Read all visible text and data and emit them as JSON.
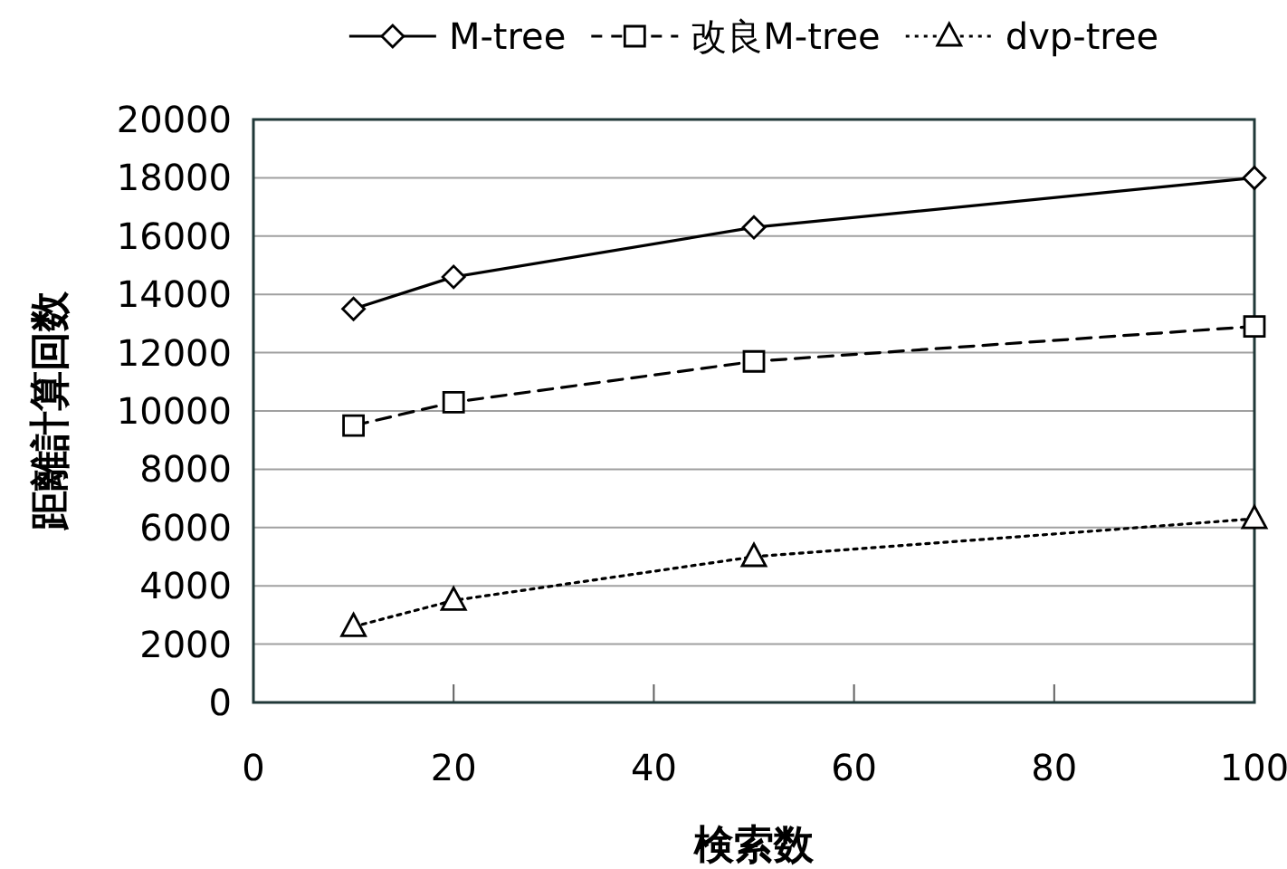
{
  "chart_data": {
    "type": "line",
    "xlabel": "検索数",
    "ylabel": "距離計算回数",
    "x": [
      10,
      20,
      50,
      100
    ],
    "series": [
      {
        "name": "M-tree",
        "color": "#000000",
        "values": [
          13500,
          14600,
          16300,
          18000
        ],
        "marker": "diamond",
        "line_style": "solid"
      },
      {
        "name": "改良M-tree",
        "color": "#000000",
        "values": [
          9500,
          10300,
          11700,
          12900
        ],
        "marker": "square",
        "line_style": "dashed"
      },
      {
        "name": "dvp-tree",
        "color": "#000000",
        "values": [
          2600,
          3500,
          5000,
          6300
        ],
        "marker": "triangle",
        "line_style": "dotted"
      }
    ],
    "xlim": [
      0,
      100
    ],
    "ylim": [
      0,
      20000
    ],
    "xticks": [
      0,
      20,
      40,
      60,
      80,
      100
    ],
    "yticks": [
      0,
      2000,
      4000,
      6000,
      8000,
      10000,
      12000,
      14000,
      16000,
      18000,
      20000
    ],
    "grid": "y",
    "legend": "top"
  }
}
